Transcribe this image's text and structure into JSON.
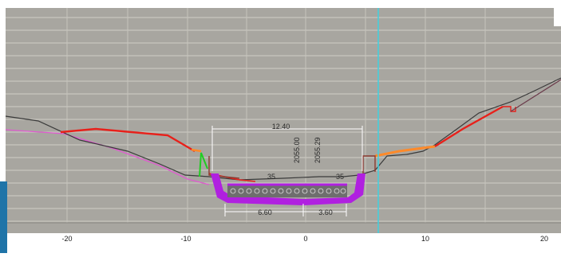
{
  "viewport": {
    "background_color": "#a8a6a0",
    "grid_color": "#cfcdc6",
    "sidebar_color": "#1f74a8",
    "cursor_color": "#3fd0e0"
  },
  "axis": {
    "tick_labels": [
      "-20",
      "-10",
      "0",
      "10",
      "20"
    ]
  },
  "dimensions": {
    "total_width": "12.40",
    "left_width": "6.60",
    "right_width": "3.60",
    "elevation_1": "2055.00",
    "elevation_2": "2055.29",
    "slope_left": "35",
    "slope_right": "35"
  },
  "colors": {
    "ground_line": "#3a3a3a",
    "design_line": "#e8201a",
    "pink_line": "#e05ad0",
    "channel": "#b020e0",
    "dimension": "#ffffff",
    "orange": "#ff8a2a",
    "green": "#22cc22"
  }
}
